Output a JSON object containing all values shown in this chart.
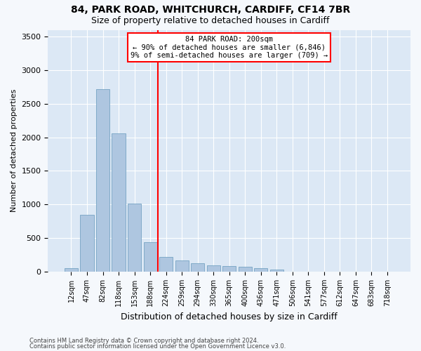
{
  "title1": "84, PARK ROAD, WHITCHURCH, CARDIFF, CF14 7BR",
  "title2": "Size of property relative to detached houses in Cardiff",
  "xlabel": "Distribution of detached houses by size in Cardiff",
  "ylabel": "Number of detached properties",
  "categories": [
    "12sqm",
    "47sqm",
    "82sqm",
    "118sqm",
    "153sqm",
    "188sqm",
    "224sqm",
    "259sqm",
    "294sqm",
    "330sqm",
    "365sqm",
    "400sqm",
    "436sqm",
    "471sqm",
    "506sqm",
    "541sqm",
    "577sqm",
    "612sqm",
    "647sqm",
    "683sqm",
    "718sqm"
  ],
  "values": [
    50,
    850,
    2720,
    2060,
    1010,
    440,
    215,
    165,
    130,
    90,
    85,
    75,
    50,
    30,
    0,
    0,
    0,
    0,
    0,
    0,
    0
  ],
  "bar_color": "#aec6e0",
  "bar_edge_color": "#6699bb",
  "ylim": [
    0,
    3600
  ],
  "yticks": [
    0,
    500,
    1000,
    1500,
    2000,
    2500,
    3000,
    3500
  ],
  "red_line_x": 5.5,
  "ann_line1": "84 PARK ROAD: 200sqm",
  "ann_line2": "← 90% of detached houses are smaller (6,846)",
  "ann_line3": "9% of semi-detached houses are larger (709) →",
  "fig_bg": "#f5f8fc",
  "ax_bg": "#dce8f5",
  "grid_color": "#ffffff",
  "footer1": "Contains HM Land Registry data © Crown copyright and database right 2024.",
  "footer2": "Contains public sector information licensed under the Open Government Licence v3.0."
}
